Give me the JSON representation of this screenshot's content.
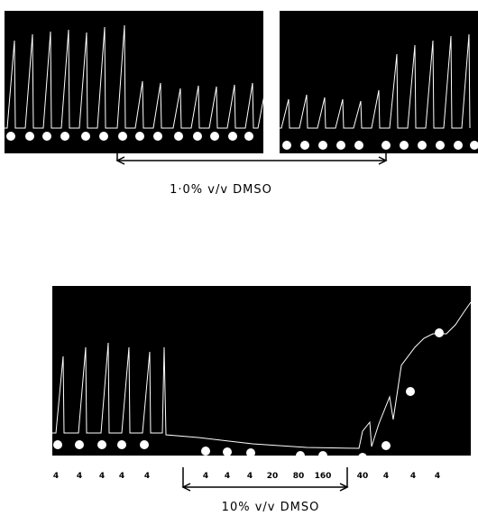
{
  "top": {
    "label": "1·0% v/v DMSO"
  },
  "bottom": {
    "label": "10% v/v DMSO",
    "doses": [
      4,
      4,
      4,
      4,
      4,
      4,
      4,
      4,
      20,
      80,
      160,
      40,
      4,
      4,
      4
    ]
  }
}
